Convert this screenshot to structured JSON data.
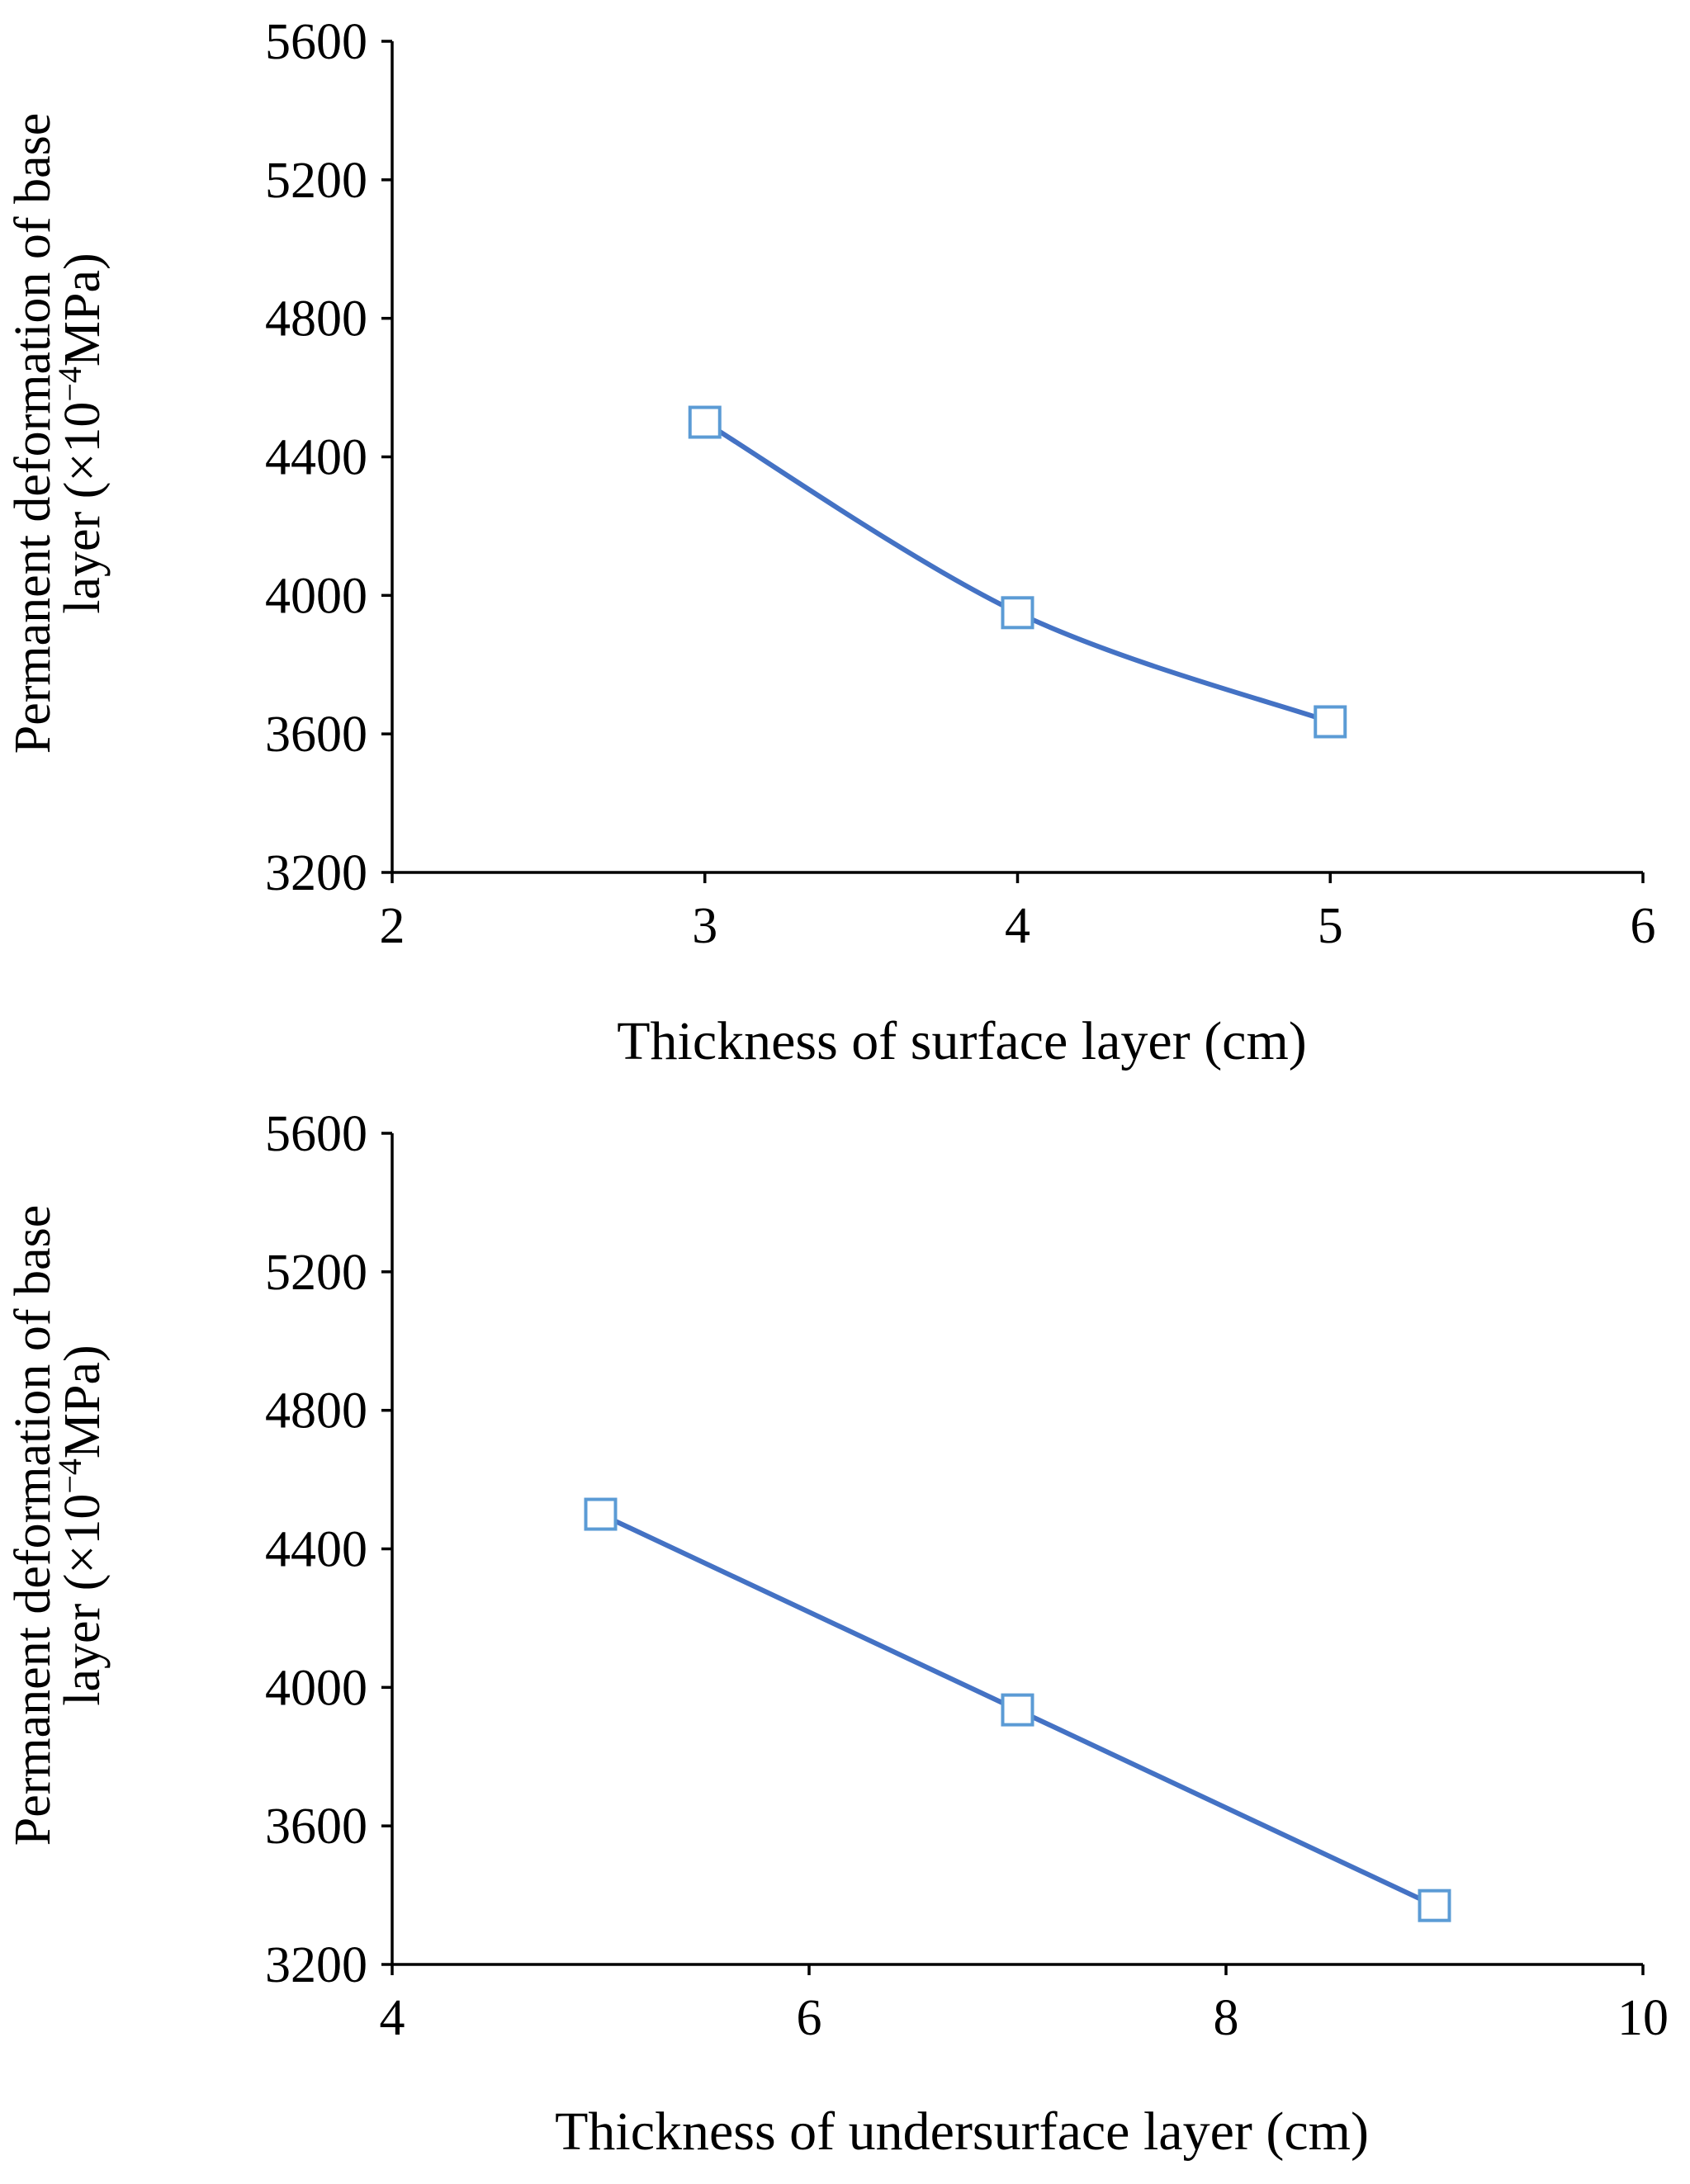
{
  "colors": {
    "line": "#4472C4",
    "marker": "#5B9BD5"
  },
  "chart_data": [
    {
      "type": "line",
      "x": [
        3,
        4,
        5
      ],
      "series": [
        {
          "name": "Permanent deformation",
          "values": [
            4500,
            3950,
            3635
          ],
          "marker": "square"
        }
      ],
      "xlim": [
        2,
        6
      ],
      "xticks": [
        "2",
        "3",
        "4",
        "5",
        "6"
      ],
      "ylim": [
        3200,
        5600
      ],
      "yticks": [
        "3200",
        "3600",
        "4000",
        "4400",
        "4800",
        "5200",
        "5600"
      ],
      "xlabel": "Thickness  of surface  layer  (cm)",
      "ylabel_line1": "Permanent  deformation  of base",
      "ylabel_line2_pre": "layer (×10",
      "ylabel_line2_sup": "−4",
      "ylabel_line2_post": "MPa)",
      "smooth": true,
      "grid": false
    },
    {
      "type": "line",
      "x": [
        5,
        7,
        9
      ],
      "series": [
        {
          "name": "Permanent deformation",
          "values": [
            4500,
            3935,
            3370
          ],
          "marker": "square"
        }
      ],
      "xlim": [
        4,
        10
      ],
      "xticks": [
        "4",
        "6",
        "8",
        "10"
      ],
      "ylim": [
        3200,
        5600
      ],
      "yticks": [
        "3200",
        "3600",
        "4000",
        "4400",
        "4800",
        "5200",
        "5600"
      ],
      "xlabel": "Thickness  of undersurface  layer  (cm)",
      "ylabel_line1": "Permanent  deformation  of base",
      "ylabel_line2_pre": "layer (×10",
      "ylabel_line2_sup": "−4",
      "ylabel_line2_post": "MPa)",
      "smooth": false,
      "grid": false
    }
  ]
}
